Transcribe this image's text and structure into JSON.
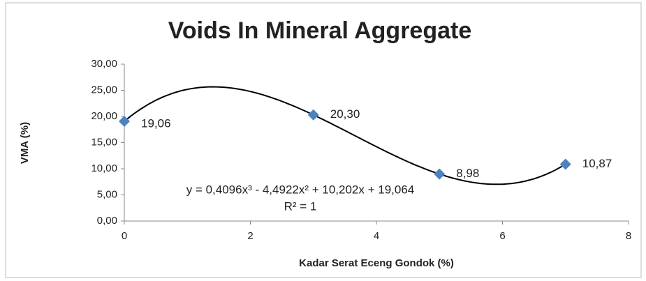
{
  "chart_data": {
    "type": "scatter",
    "title": "Voids In Mineral Aggregate",
    "x_label": "Kadar Serat Eceng Gondok (%)",
    "y_label": "VMA (%)",
    "x": [
      0,
      3,
      5,
      7
    ],
    "values": [
      19.06,
      20.3,
      8.98,
      10.87
    ],
    "value_labels": [
      "19,06",
      "20,30",
      "8,98",
      "10,87"
    ],
    "color": "#4f81bd",
    "trendline": {
      "type": "polynomial",
      "order": 3,
      "equation": "y = 0,4096x³ - 4,4922x² + 10,202x + 19,064",
      "r_squared": "R² = 1"
    },
    "xlim": [
      0,
      8
    ],
    "xticks": [
      0,
      2,
      4,
      6,
      8
    ],
    "ylim": [
      0,
      30
    ],
    "yticks": [
      {
        "value": 0,
        "label": "0,00"
      },
      {
        "value": 5,
        "label": "5,00"
      },
      {
        "value": 10,
        "label": "10,00"
      },
      {
        "value": 15,
        "label": "15,00"
      },
      {
        "value": 20,
        "label": "20,00"
      },
      {
        "value": 25,
        "label": "25,00"
      },
      {
        "value": 30,
        "label": "30,00"
      }
    ]
  }
}
